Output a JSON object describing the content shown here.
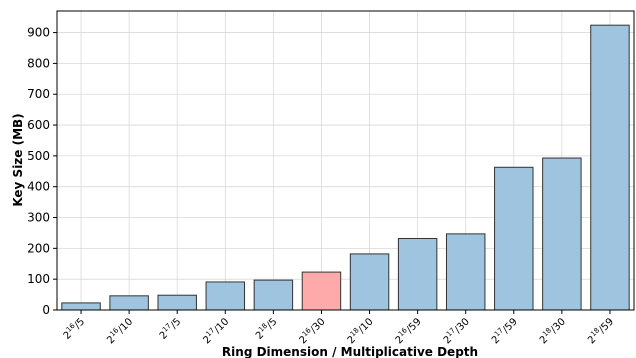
{
  "chart_data": {
    "type": "bar",
    "xlabel": "Ring Dimension / Multiplicative Depth",
    "ylabel": "Key Size (MB)",
    "ylim": [
      0,
      970
    ],
    "yticks": [
      0,
      100,
      200,
      300,
      400,
      500,
      600,
      700,
      800,
      900
    ],
    "grid": true,
    "categories": [
      {
        "base": "2",
        "exp": "16",
        "depth": "/5"
      },
      {
        "base": "2",
        "exp": "16",
        "depth": "/10"
      },
      {
        "base": "2",
        "exp": "17",
        "depth": "/5"
      },
      {
        "base": "2",
        "exp": "17",
        "depth": "/10"
      },
      {
        "base": "2",
        "exp": "18",
        "depth": "/5"
      },
      {
        "base": "2",
        "exp": "16",
        "depth": "/30"
      },
      {
        "base": "2",
        "exp": "18",
        "depth": "/10"
      },
      {
        "base": "2",
        "exp": "16",
        "depth": "/59"
      },
      {
        "base": "2",
        "exp": "17",
        "depth": "/30"
      },
      {
        "base": "2",
        "exp": "17",
        "depth": "/59"
      },
      {
        "base": "2",
        "exp": "18",
        "depth": "/30"
      },
      {
        "base": "2",
        "exp": "18",
        "depth": "/59"
      }
    ],
    "values": [
      23,
      46,
      48,
      91,
      97,
      123,
      182,
      232,
      247,
      463,
      493,
      924
    ],
    "bar_colors": [
      "#9ec4df",
      "#9ec4df",
      "#9ec4df",
      "#9ec4df",
      "#9ec4df",
      "#ffaaaa",
      "#9ec4df",
      "#9ec4df",
      "#9ec4df",
      "#9ec4df",
      "#9ec4df",
      "#9ec4df"
    ],
    "edge_color": "#333333"
  }
}
